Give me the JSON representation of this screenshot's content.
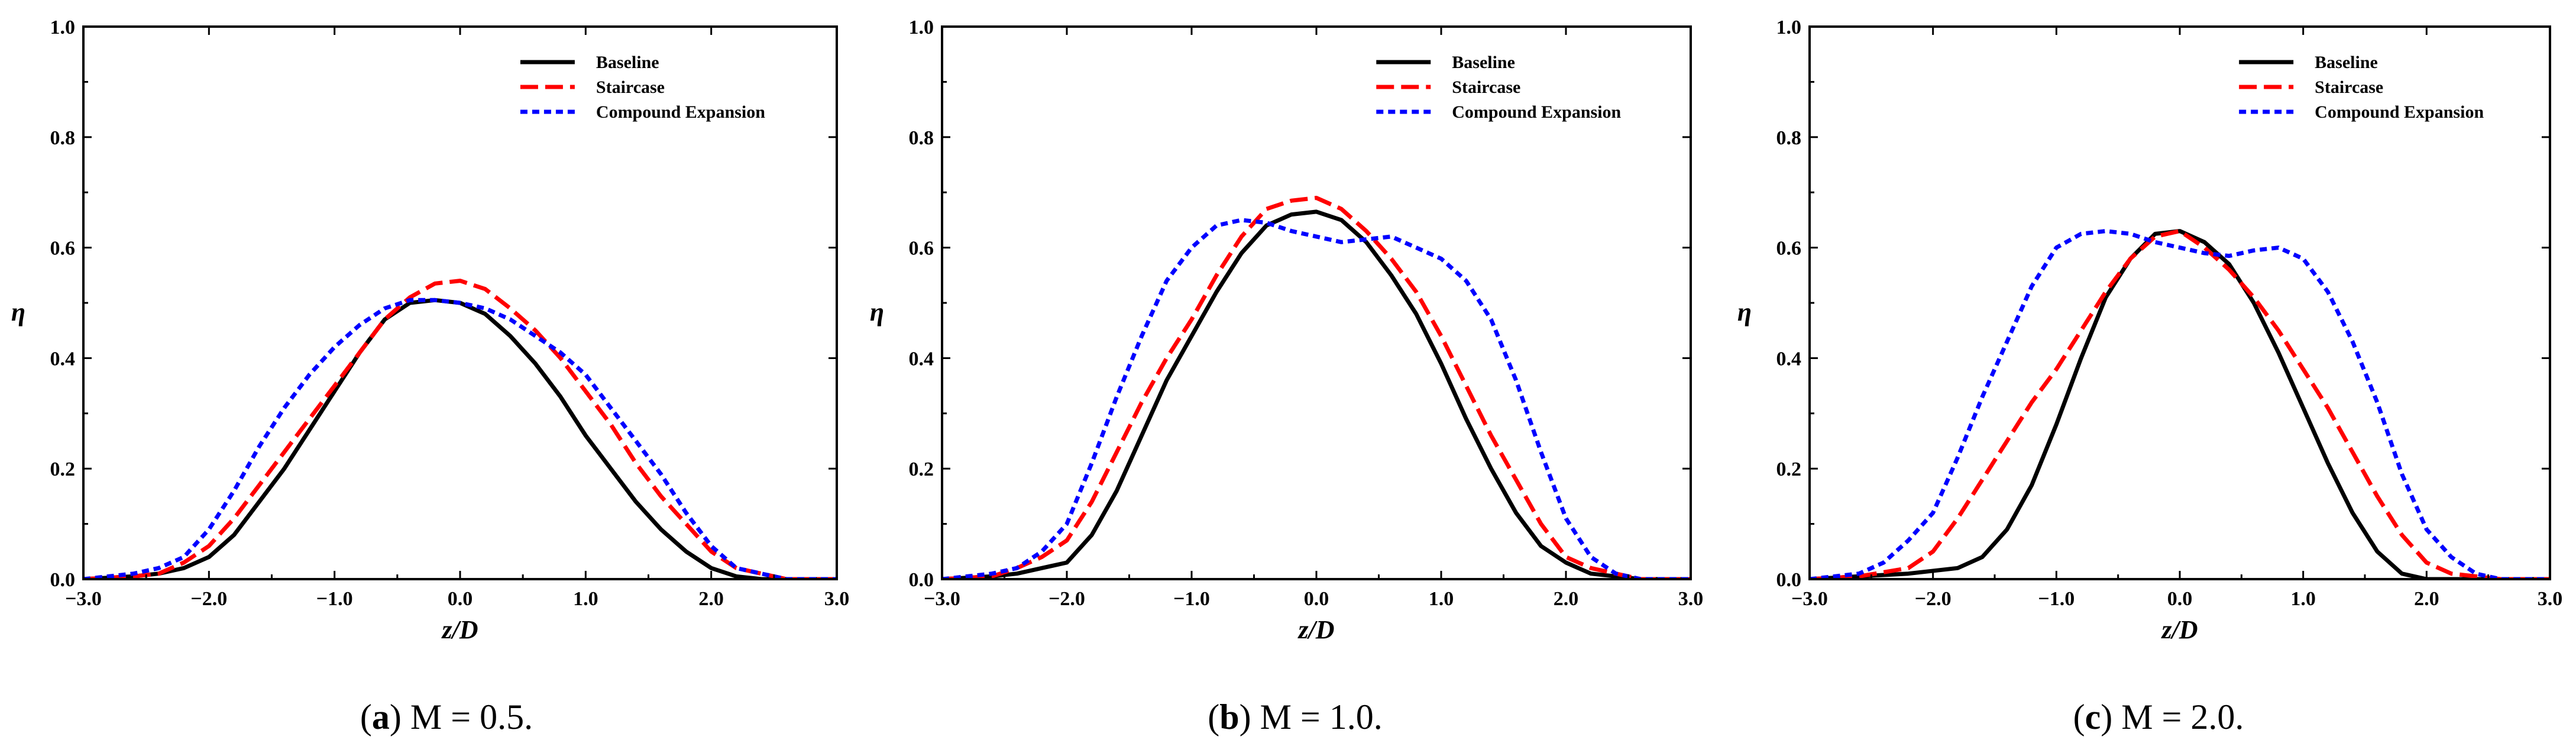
{
  "figure": {
    "captions": [
      {
        "letter": "a",
        "text": " M = 0.5."
      },
      {
        "letter": "b",
        "text": " M = 1.0."
      },
      {
        "letter": "c",
        "text": " M = 2.0."
      }
    ]
  },
  "styles": {
    "Baseline": {
      "color": "#000000",
      "dash": "solid"
    },
    "Staircase": {
      "color": "#ff0000",
      "dash": "dashed"
    },
    "Compound Expansion": {
      "color": "#0000ff",
      "dash": "dotted"
    }
  },
  "chart_data": [
    {
      "type": "line",
      "title": "(a) M = 0.5.",
      "xlabel": "z/D",
      "ylabel": "η",
      "xlim": [
        -3.0,
        3.0
      ],
      "ylim": [
        0.0,
        1.0
      ],
      "xticks": [
        -3.0,
        -2.0,
        -1.0,
        0.0,
        1.0,
        2.0,
        3.0
      ],
      "xtick_labels": [
        "−3.0",
        "−2.0",
        "−1.0",
        "0.0",
        "1.0",
        "2.0",
        "3.0"
      ],
      "yticks": [
        0.0,
        0.2,
        0.4,
        0.6,
        0.8,
        1.0
      ],
      "ytick_labels": [
        "0.0",
        "0.2",
        "0.4",
        "0.6",
        "0.8",
        "1.0"
      ],
      "legend": "top-right",
      "series": [
        {
          "name": "Baseline",
          "x": [
            -3.0,
            -2.6,
            -2.4,
            -2.2,
            -2.0,
            -1.8,
            -1.6,
            -1.4,
            -1.2,
            -1.0,
            -0.8,
            -0.6,
            -0.4,
            -0.2,
            0.0,
            0.2,
            0.4,
            0.6,
            0.8,
            1.0,
            1.2,
            1.4,
            1.6,
            1.8,
            2.0,
            2.2,
            2.4,
            2.6,
            3.0
          ],
          "y": [
            0.0,
            0.005,
            0.01,
            0.02,
            0.04,
            0.08,
            0.14,
            0.2,
            0.27,
            0.34,
            0.41,
            0.47,
            0.5,
            0.505,
            0.5,
            0.48,
            0.44,
            0.39,
            0.33,
            0.26,
            0.2,
            0.14,
            0.09,
            0.05,
            0.02,
            0.005,
            0.0,
            0.0,
            0.0
          ]
        },
        {
          "name": "Staircase",
          "x": [
            -3.0,
            -2.6,
            -2.4,
            -2.2,
            -2.0,
            -1.8,
            -1.6,
            -1.4,
            -1.2,
            -1.0,
            -0.8,
            -0.6,
            -0.4,
            -0.2,
            0.0,
            0.2,
            0.4,
            0.6,
            0.8,
            1.0,
            1.2,
            1.4,
            1.6,
            1.8,
            2.0,
            2.2,
            2.4,
            2.6,
            3.0
          ],
          "y": [
            0.0,
            0.005,
            0.01,
            0.03,
            0.06,
            0.11,
            0.17,
            0.23,
            0.29,
            0.35,
            0.41,
            0.47,
            0.51,
            0.535,
            0.54,
            0.525,
            0.49,
            0.45,
            0.4,
            0.34,
            0.28,
            0.21,
            0.15,
            0.1,
            0.05,
            0.02,
            0.01,
            0.0,
            0.0
          ]
        },
        {
          "name": "Compound Expansion",
          "x": [
            -3.0,
            -2.6,
            -2.4,
            -2.2,
            -2.0,
            -1.8,
            -1.6,
            -1.4,
            -1.2,
            -1.0,
            -0.8,
            -0.6,
            -0.4,
            -0.2,
            0.0,
            0.2,
            0.4,
            0.6,
            0.8,
            1.0,
            1.2,
            1.4,
            1.6,
            1.8,
            2.0,
            2.2,
            2.4,
            2.6,
            3.0
          ],
          "y": [
            0.0,
            0.01,
            0.02,
            0.04,
            0.09,
            0.16,
            0.24,
            0.31,
            0.37,
            0.42,
            0.46,
            0.49,
            0.505,
            0.505,
            0.5,
            0.49,
            0.47,
            0.44,
            0.41,
            0.37,
            0.31,
            0.25,
            0.19,
            0.12,
            0.06,
            0.02,
            0.01,
            0.0,
            0.0
          ]
        }
      ]
    },
    {
      "type": "line",
      "title": "(b) M = 1.0.",
      "xlabel": "z/D",
      "ylabel": "η",
      "xlim": [
        -3.0,
        3.0
      ],
      "ylim": [
        0.0,
        1.0
      ],
      "xticks": [
        -3.0,
        -2.0,
        -1.0,
        0.0,
        1.0,
        2.0,
        3.0
      ],
      "xtick_labels": [
        "−3.0",
        "−2.0",
        "−1.0",
        "0.0",
        "1.0",
        "2.0",
        "3.0"
      ],
      "yticks": [
        0.0,
        0.2,
        0.4,
        0.6,
        0.8,
        1.0
      ],
      "ytick_labels": [
        "0.0",
        "0.2",
        "0.4",
        "0.6",
        "0.8",
        "1.0"
      ],
      "legend": "top-right",
      "series": [
        {
          "name": "Baseline",
          "x": [
            -3.0,
            -2.6,
            -2.4,
            -2.2,
            -2.0,
            -1.8,
            -1.6,
            -1.4,
            -1.2,
            -1.0,
            -0.8,
            -0.6,
            -0.4,
            -0.2,
            0.0,
            0.2,
            0.4,
            0.6,
            0.8,
            1.0,
            1.2,
            1.4,
            1.6,
            1.8,
            2.0,
            2.2,
            2.4,
            2.6,
            3.0
          ],
          "y": [
            0.0,
            0.005,
            0.01,
            0.02,
            0.03,
            0.08,
            0.16,
            0.26,
            0.36,
            0.44,
            0.52,
            0.59,
            0.64,
            0.66,
            0.665,
            0.65,
            0.61,
            0.55,
            0.48,
            0.39,
            0.29,
            0.2,
            0.12,
            0.06,
            0.03,
            0.01,
            0.005,
            0.0,
            0.0
          ]
        },
        {
          "name": "Staircase",
          "x": [
            -3.0,
            -2.6,
            -2.4,
            -2.2,
            -2.0,
            -1.8,
            -1.6,
            -1.4,
            -1.2,
            -1.0,
            -0.8,
            -0.6,
            -0.4,
            -0.2,
            0.0,
            0.2,
            0.4,
            0.6,
            0.8,
            1.0,
            1.2,
            1.4,
            1.6,
            1.8,
            2.0,
            2.2,
            2.4,
            2.6,
            3.0
          ],
          "y": [
            0.0,
            0.005,
            0.02,
            0.04,
            0.07,
            0.14,
            0.23,
            0.32,
            0.4,
            0.47,
            0.55,
            0.62,
            0.67,
            0.685,
            0.69,
            0.67,
            0.63,
            0.58,
            0.52,
            0.44,
            0.35,
            0.26,
            0.18,
            0.1,
            0.04,
            0.02,
            0.01,
            0.0,
            0.0
          ]
        },
        {
          "name": "Compound Expansion",
          "x": [
            -3.0,
            -2.6,
            -2.4,
            -2.2,
            -2.0,
            -1.8,
            -1.6,
            -1.4,
            -1.2,
            -1.0,
            -0.8,
            -0.6,
            -0.4,
            -0.2,
            0.0,
            0.2,
            0.4,
            0.6,
            0.8,
            1.0,
            1.2,
            1.4,
            1.6,
            1.8,
            2.0,
            2.2,
            2.4,
            2.6,
            3.0
          ],
          "y": [
            0.0,
            0.01,
            0.02,
            0.05,
            0.1,
            0.21,
            0.33,
            0.44,
            0.54,
            0.6,
            0.64,
            0.65,
            0.645,
            0.63,
            0.62,
            0.61,
            0.615,
            0.62,
            0.6,
            0.58,
            0.54,
            0.47,
            0.36,
            0.23,
            0.11,
            0.04,
            0.01,
            0.0,
            0.0
          ]
        }
      ]
    },
    {
      "type": "line",
      "title": "(c) M = 2.0.",
      "xlabel": "z/D",
      "ylabel": "η",
      "xlim": [
        -3.0,
        3.0
      ],
      "ylim": [
        0.0,
        1.0
      ],
      "xticks": [
        -3.0,
        -2.0,
        -1.0,
        0.0,
        1.0,
        2.0,
        3.0
      ],
      "xtick_labels": [
        "−3.0",
        "−2.0",
        "−1.0",
        "0.0",
        "1.0",
        "2.0",
        "3.0"
      ],
      "yticks": [
        0.0,
        0.2,
        0.4,
        0.6,
        0.8,
        1.0
      ],
      "ytick_labels": [
        "0.0",
        "0.2",
        "0.4",
        "0.6",
        "0.8",
        "1.0"
      ],
      "legend": "top-right",
      "series": [
        {
          "name": "Baseline",
          "x": [
            -3.0,
            -2.6,
            -2.2,
            -1.8,
            -1.6,
            -1.4,
            -1.2,
            -1.0,
            -0.8,
            -0.6,
            -0.4,
            -0.2,
            0.0,
            0.2,
            0.4,
            0.6,
            0.8,
            1.0,
            1.2,
            1.4,
            1.6,
            1.8,
            2.0,
            2.2,
            2.6,
            3.0
          ],
          "y": [
            0.0,
            0.005,
            0.01,
            0.02,
            0.04,
            0.09,
            0.17,
            0.28,
            0.4,
            0.51,
            0.58,
            0.625,
            0.63,
            0.61,
            0.57,
            0.5,
            0.41,
            0.31,
            0.21,
            0.12,
            0.05,
            0.01,
            0.0,
            0.0,
            0.0,
            0.0
          ]
        },
        {
          "name": "Staircase",
          "x": [
            -3.0,
            -2.6,
            -2.2,
            -2.0,
            -1.8,
            -1.6,
            -1.4,
            -1.2,
            -1.0,
            -0.8,
            -0.6,
            -0.4,
            -0.2,
            0.0,
            0.2,
            0.4,
            0.6,
            0.8,
            1.0,
            1.2,
            1.4,
            1.6,
            1.8,
            2.0,
            2.2,
            2.6,
            3.0
          ],
          "y": [
            0.0,
            0.005,
            0.02,
            0.05,
            0.11,
            0.18,
            0.25,
            0.32,
            0.38,
            0.45,
            0.52,
            0.58,
            0.62,
            0.63,
            0.6,
            0.56,
            0.51,
            0.45,
            0.38,
            0.31,
            0.23,
            0.15,
            0.08,
            0.03,
            0.01,
            0.0,
            0.0
          ]
        },
        {
          "name": "Compound Expansion",
          "x": [
            -3.0,
            -2.6,
            -2.4,
            -2.2,
            -2.0,
            -1.8,
            -1.6,
            -1.4,
            -1.2,
            -1.0,
            -0.8,
            -0.6,
            -0.4,
            -0.2,
            0.0,
            0.2,
            0.4,
            0.6,
            0.8,
            1.0,
            1.2,
            1.4,
            1.6,
            1.8,
            2.0,
            2.2,
            2.4,
            2.6,
            3.0
          ],
          "y": [
            0.0,
            0.01,
            0.03,
            0.07,
            0.12,
            0.22,
            0.33,
            0.43,
            0.53,
            0.6,
            0.625,
            0.63,
            0.625,
            0.61,
            0.6,
            0.59,
            0.585,
            0.595,
            0.6,
            0.58,
            0.52,
            0.43,
            0.32,
            0.19,
            0.09,
            0.04,
            0.01,
            0.0,
            0.0
          ]
        }
      ]
    }
  ]
}
